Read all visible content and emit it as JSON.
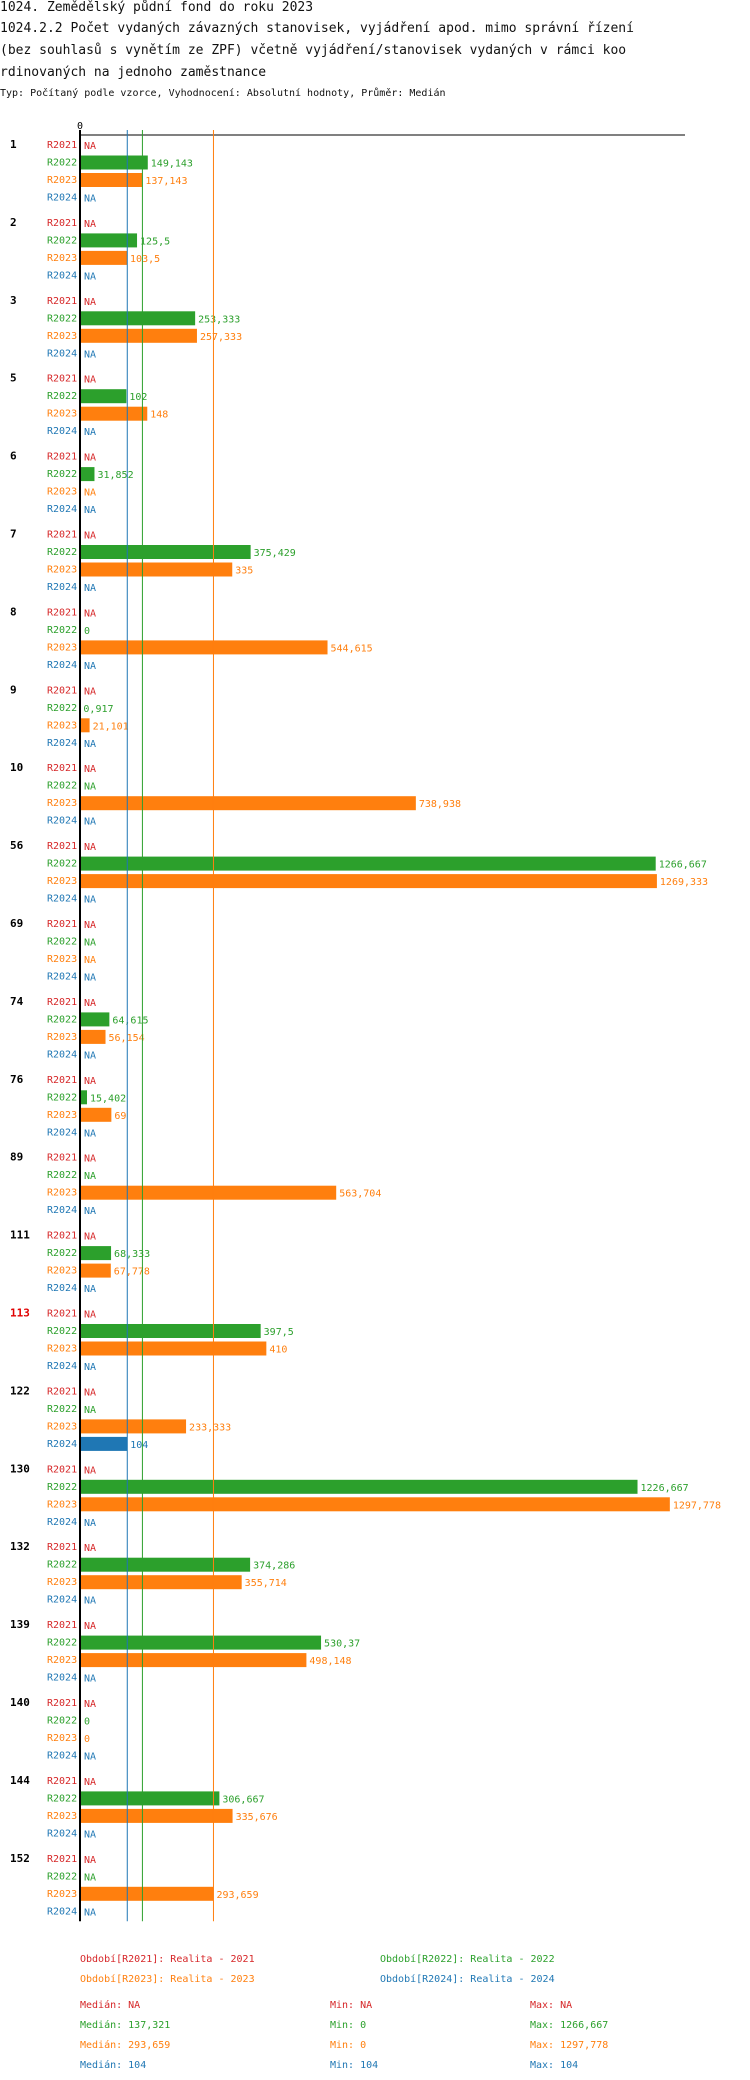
{
  "header": {
    "line1": "1024. Zemědělský půdní fond  do roku 2023",
    "line2": "1024.2.2 Počet vydaných závazných stanovisek, vyjádření apod. mimo správní řízení",
    "line3": " (bez souhlasů s vynětím ze ZPF) včetně vyjádření/stanovisek vydaných v rámci koo",
    "line4": "rdinovaných na jednoho zaměstnance",
    "subtitle": "Typ: Počítaný podle vzorce, Vyhodnocení: Absolutní hodnoty, Průměr: Medián"
  },
  "chart_data": {
    "type": "bar",
    "orientation": "horizontal",
    "axis_zero_label": "0",
    "xlim": [
      0,
      1297.778
    ],
    "series": [
      {
        "key": "R2021",
        "name": "Realita - 2021",
        "color": "#d62728"
      },
      {
        "key": "R2022",
        "name": "Realita - 2022",
        "color": "#2ca02c"
      },
      {
        "key": "R2023",
        "name": "Realita - 2023",
        "color": "#ff7f0e"
      },
      {
        "key": "R2024",
        "name": "Realita - 2024",
        "color": "#1f77b4"
      }
    ],
    "categories": [
      {
        "label": "1",
        "highlight": false,
        "values": [
          null,
          149.143,
          137.143,
          null
        ],
        "labels": [
          "NA",
          "149,143",
          "137,143",
          "NA"
        ]
      },
      {
        "label": "2",
        "highlight": false,
        "values": [
          null,
          125.5,
          103.5,
          null
        ],
        "labels": [
          "NA",
          "125,5",
          "103,5",
          "NA"
        ]
      },
      {
        "label": "3",
        "highlight": false,
        "values": [
          null,
          253.333,
          257.333,
          null
        ],
        "labels": [
          "NA",
          "253,333",
          "257,333",
          "NA"
        ]
      },
      {
        "label": "5",
        "highlight": false,
        "values": [
          null,
          102,
          148,
          null
        ],
        "labels": [
          "NA",
          "102",
          "148",
          "NA"
        ]
      },
      {
        "label": "6",
        "highlight": false,
        "values": [
          null,
          31.852,
          null,
          null
        ],
        "labels": [
          "NA",
          "31,852",
          "NA",
          "NA"
        ]
      },
      {
        "label": "7",
        "highlight": false,
        "values": [
          null,
          375.429,
          335,
          null
        ],
        "labels": [
          "NA",
          "375,429",
          "335",
          "NA"
        ]
      },
      {
        "label": "8",
        "highlight": false,
        "values": [
          null,
          0,
          544.615,
          null
        ],
        "labels": [
          "NA",
          "0",
          "544,615",
          "NA"
        ]
      },
      {
        "label": "9",
        "highlight": false,
        "values": [
          null,
          0.917,
          21.101,
          null
        ],
        "labels": [
          "NA",
          "0,917",
          "21,101",
          "NA"
        ]
      },
      {
        "label": "10",
        "highlight": false,
        "values": [
          null,
          null,
          738.938,
          null
        ],
        "labels": [
          "NA",
          "NA",
          "738,938",
          "NA"
        ]
      },
      {
        "label": "56",
        "highlight": false,
        "values": [
          null,
          1266.667,
          1269.333,
          null
        ],
        "labels": [
          "NA",
          "1266,667",
          "1269,333",
          "NA"
        ]
      },
      {
        "label": "69",
        "highlight": false,
        "values": [
          null,
          null,
          null,
          null
        ],
        "labels": [
          "NA",
          "NA",
          "NA",
          "NA"
        ]
      },
      {
        "label": "74",
        "highlight": false,
        "values": [
          null,
          64.615,
          56.154,
          null
        ],
        "labels": [
          "NA",
          "64,615",
          "56,154",
          "NA"
        ]
      },
      {
        "label": "76",
        "highlight": false,
        "values": [
          null,
          15.402,
          69,
          null
        ],
        "labels": [
          "NA",
          "15,402",
          "69",
          "NA"
        ]
      },
      {
        "label": "89",
        "highlight": false,
        "values": [
          null,
          null,
          563.704,
          null
        ],
        "labels": [
          "NA",
          "NA",
          "563,704",
          "NA"
        ]
      },
      {
        "label": "111",
        "highlight": false,
        "values": [
          null,
          68.333,
          67.778,
          null
        ],
        "labels": [
          "NA",
          "68,333",
          "67,778",
          "NA"
        ]
      },
      {
        "label": "113",
        "highlight": true,
        "values": [
          null,
          397.5,
          410,
          null
        ],
        "labels": [
          "NA",
          "397,5",
          "410",
          "NA"
        ]
      },
      {
        "label": "122",
        "highlight": false,
        "values": [
          null,
          null,
          233.333,
          104
        ],
        "labels": [
          "NA",
          "NA",
          "233,333",
          "104"
        ]
      },
      {
        "label": "130",
        "highlight": false,
        "values": [
          null,
          1226.667,
          1297.778,
          null
        ],
        "labels": [
          "NA",
          "1226,667",
          "1297,778",
          "NA"
        ]
      },
      {
        "label": "132",
        "highlight": false,
        "values": [
          null,
          374.286,
          355.714,
          null
        ],
        "labels": [
          "NA",
          "374,286",
          "355,714",
          "NA"
        ]
      },
      {
        "label": "139",
        "highlight": false,
        "values": [
          null,
          530.37,
          498.148,
          null
        ],
        "labels": [
          "NA",
          "530,37",
          "498,148",
          "NA"
        ]
      },
      {
        "label": "140",
        "highlight": false,
        "values": [
          null,
          0,
          0,
          null
        ],
        "labels": [
          "NA",
          "0",
          "0",
          "NA"
        ]
      },
      {
        "label": "144",
        "highlight": false,
        "values": [
          null,
          306.667,
          335.676,
          null
        ],
        "labels": [
          "NA",
          "306,667",
          "335,676",
          "NA"
        ]
      },
      {
        "label": "152",
        "highlight": false,
        "values": [
          null,
          null,
          293.659,
          null
        ],
        "labels": [
          "NA",
          "NA",
          "293,659",
          "NA"
        ]
      }
    ],
    "median_lines": [
      {
        "series": "R2022",
        "value": 137.321
      },
      {
        "series": "R2023",
        "value": 293.659
      },
      {
        "series": "R2024",
        "value": 104
      }
    ]
  },
  "legend": [
    {
      "text": "Období[R2021]: Realita - 2021",
      "color": "#d62728"
    },
    {
      "text": "Období[R2022]: Realita - 2022",
      "color": "#2ca02c"
    },
    {
      "text": "Období[R2023]: Realita - 2023",
      "color": "#ff7f0e"
    },
    {
      "text": "Období[R2024]: Realita - 2024",
      "color": "#1f77b4"
    }
  ],
  "stats": [
    {
      "color": "#d62728",
      "median": "Medián: NA",
      "min": "Min: NA",
      "max": "Max: NA"
    },
    {
      "color": "#2ca02c",
      "median": "Medián: 137,321",
      "min": "Min: 0",
      "max": "Max: 1266,667"
    },
    {
      "color": "#ff7f0e",
      "median": "Medián: 293,659",
      "min": "Min: 0",
      "max": "Max: 1297,778"
    },
    {
      "color": "#1f77b4",
      "median": "Medián: 104",
      "min": "Min: 104",
      "max": "Max: 104"
    }
  ]
}
